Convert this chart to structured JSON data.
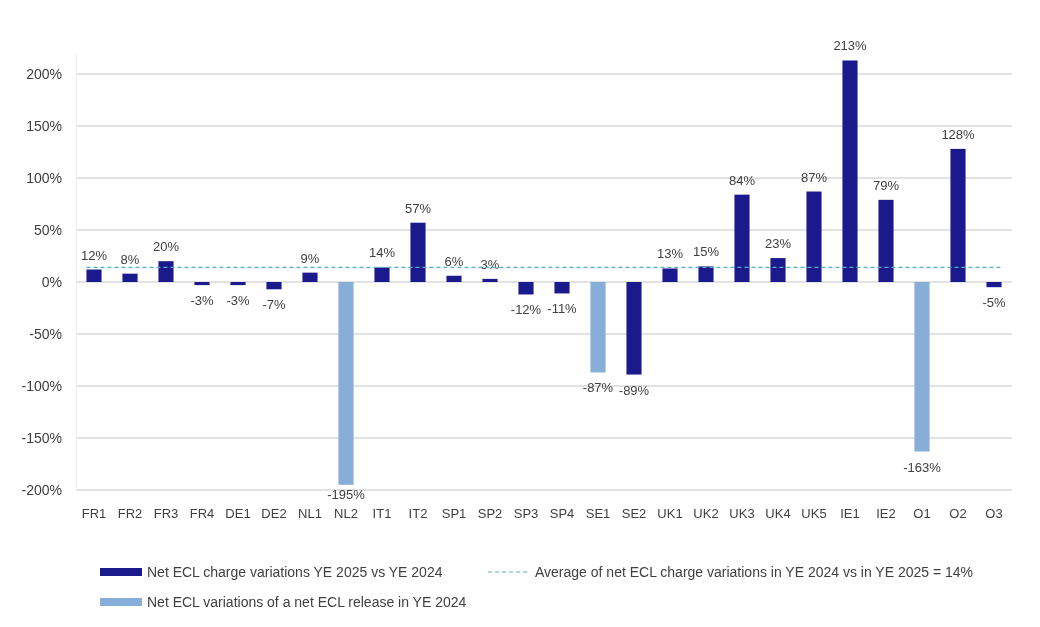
{
  "chart_data": {
    "type": "bar",
    "categories": [
      "FR1",
      "FR2",
      "FR3",
      "FR4",
      "DE1",
      "DE2",
      "NL1",
      "NL2",
      "IT1",
      "IT2",
      "SP1",
      "SP2",
      "SP3",
      "SP4",
      "SE1",
      "SE2",
      "UK1",
      "UK2",
      "UK3",
      "UK4",
      "UK5",
      "IE1",
      "IE2",
      "O1",
      "O2",
      "O3"
    ],
    "series": [
      {
        "name": "Net ECL charge variations YE 2025 vs YE 2024",
        "color": "#1a1a8c",
        "values": [
          12,
          8,
          20,
          -3,
          -3,
          -7,
          9,
          null,
          14,
          57,
          6,
          3,
          -12,
          -11,
          null,
          -89,
          13,
          15,
          84,
          23,
          87,
          213,
          79,
          null,
          128,
          -5
        ],
        "value_labels": [
          "12%",
          "8%",
          "20%",
          "-3%",
          "-3%",
          "-7%",
          "9%",
          null,
          "14%",
          "57%",
          "6%",
          "3%",
          "-12%",
          "-11%",
          null,
          "-89%",
          "13%",
          "15%",
          "84%",
          "23%",
          "87%",
          "213%",
          "79%",
          null,
          "128%",
          "-5%"
        ]
      },
      {
        "name": "Net ECL variations of a net ECL release in YE 2024",
        "color": "#86aed8",
        "values": [
          null,
          null,
          null,
          null,
          null,
          null,
          null,
          -195,
          null,
          null,
          null,
          null,
          null,
          null,
          -87,
          null,
          null,
          null,
          null,
          null,
          null,
          null,
          null,
          -163,
          null,
          null
        ],
        "value_labels": [
          null,
          null,
          null,
          null,
          null,
          null,
          null,
          "-195%",
          null,
          null,
          null,
          null,
          null,
          null,
          "-87%",
          null,
          null,
          null,
          null,
          null,
          null,
          null,
          null,
          "-163%",
          null,
          null
        ]
      }
    ],
    "ylim": [
      -200,
      220
    ],
    "yticks": [
      {
        "value": -200,
        "label": "-200%"
      },
      {
        "value": -150,
        "label": "-150%"
      },
      {
        "value": -100,
        "label": "-100%"
      },
      {
        "value": -50,
        "label": "-50%"
      },
      {
        "value": 0,
        "label": "0%"
      },
      {
        "value": 50,
        "label": "50%"
      },
      {
        "value": 100,
        "label": "100%"
      },
      {
        "value": 150,
        "label": "150%"
      },
      {
        "value": 200,
        "label": "200%"
      }
    ],
    "grid": "y",
    "ref_lines": [
      {
        "axis": "y",
        "value": 14,
        "label": "Average of net ECL charge variations in YE 2024 vs in YE 2025 = 14%",
        "color": "#5aaec0",
        "line_style": "dashed"
      }
    ],
    "legend": "bottom"
  }
}
